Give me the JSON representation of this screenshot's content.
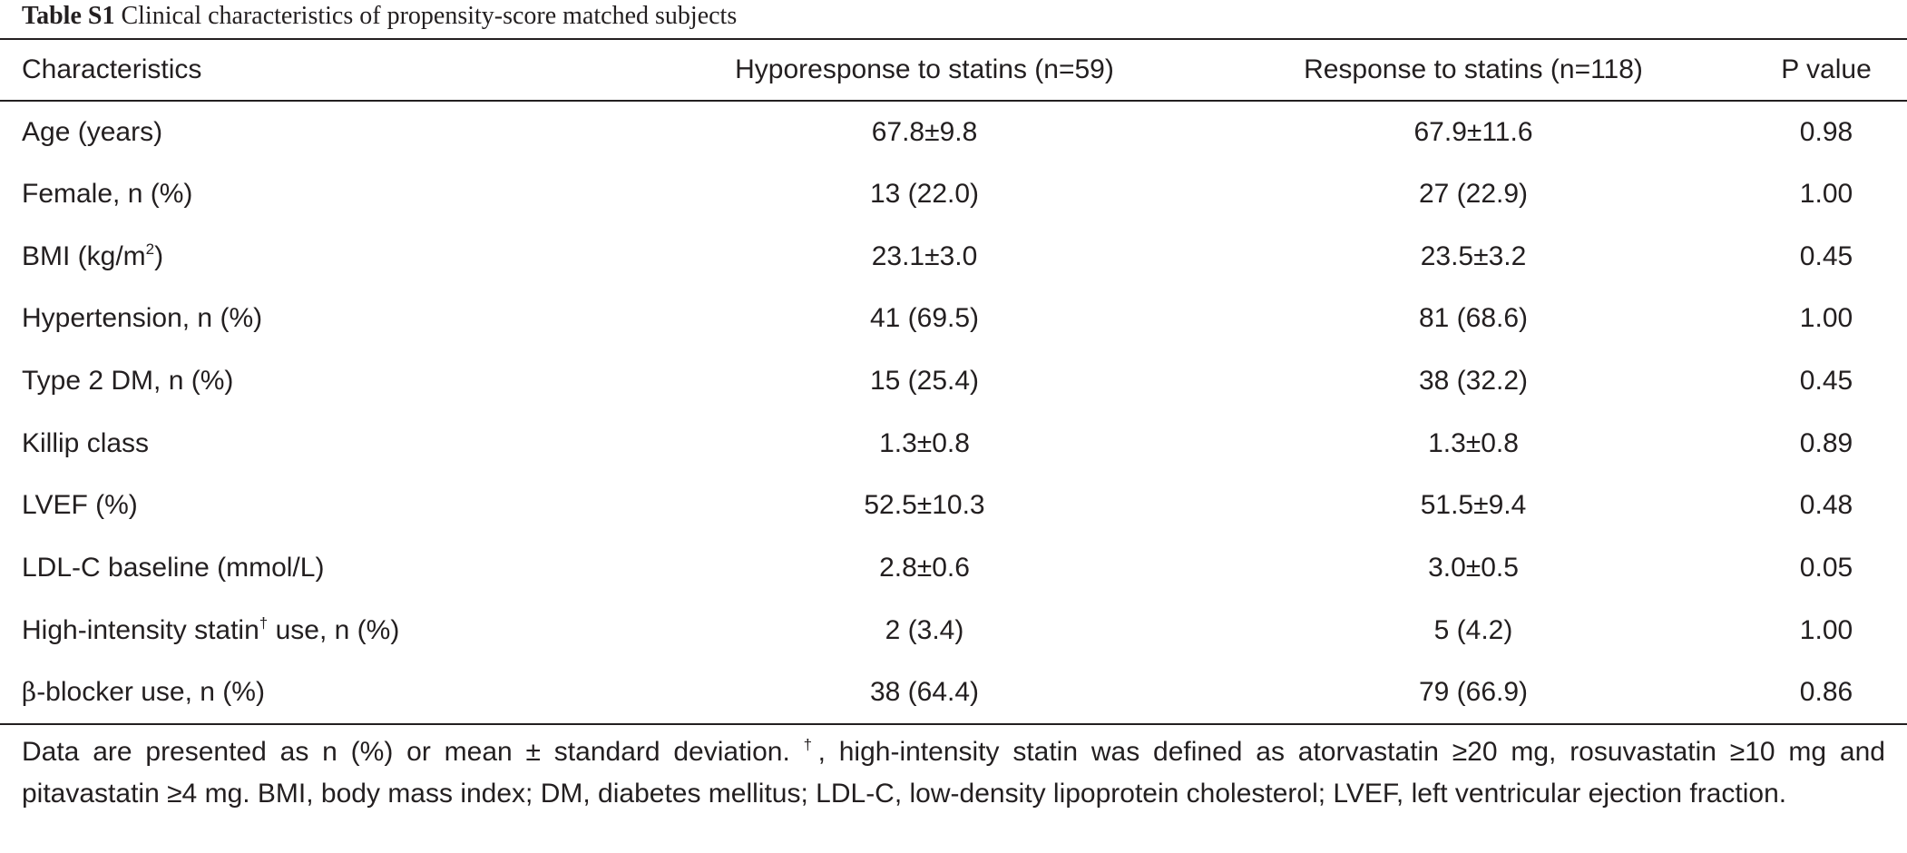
{
  "caption": {
    "label": "Table S1",
    "title": "Clinical characteristics of propensity-score matched subjects"
  },
  "headers": [
    "Characteristics",
    "Hyporesponse to statins (n=59)",
    "Response to statins (n=118)",
    "P value"
  ],
  "rows": [
    {
      "label": "Age (years)",
      "hypo": "67.8±9.8",
      "resp": "67.9±11.6",
      "p": "0.98"
    },
    {
      "label": "Female, n (%)",
      "hypo": "13 (22.0)",
      "resp": "27 (22.9)",
      "p": "1.00"
    },
    {
      "label_pre": "BMI (kg/m",
      "label_sup": "2",
      "label_post": ")",
      "hypo": "23.1±3.0",
      "resp": "23.5±3.2",
      "p": "0.45"
    },
    {
      "label": "Hypertension, n (%)",
      "hypo": "41 (69.5)",
      "resp": "81 (68.6)",
      "p": "1.00"
    },
    {
      "label": "Type 2 DM, n (%)",
      "hypo": "15 (25.4)",
      "resp": "38 (32.2)",
      "p": "0.45"
    },
    {
      "label": "Killip class",
      "hypo": "1.3±0.8",
      "resp": "1.3±0.8",
      "p": "0.89"
    },
    {
      "label": "LVEF (%)",
      "hypo": "52.5±10.3",
      "resp": "51.5±9.4",
      "p": "0.48"
    },
    {
      "label": "LDL-C baseline (mmol/L)",
      "hypo": "2.8±0.6",
      "resp": "3.0±0.5",
      "p": "0.05"
    },
    {
      "label_pre": "High-intensity statin",
      "label_sup": "†",
      "label_post": " use, n (%)",
      "hypo": "2 (3.4)",
      "resp": "5 (4.2)",
      "p": "1.00"
    },
    {
      "label_greek": "β",
      "label_post": "-blocker use, n (%)",
      "hypo": "38 (64.4)",
      "resp": "79 (66.9)",
      "p": "0.86"
    }
  ],
  "footnote": {
    "part1": "Data are presented as n (%) or mean ± standard deviation. ",
    "dagger": "†",
    "part2": ", high-intensity statin was defined as atorvastatin ≥20 mg, rosuvastatin ≥10 mg and pitavastatin ≥4 mg. BMI, body mass index; DM, diabetes mellitus; LDL-C, low-density lipoprotein cholesterol; LVEF, left ventricular ejection fraction."
  }
}
